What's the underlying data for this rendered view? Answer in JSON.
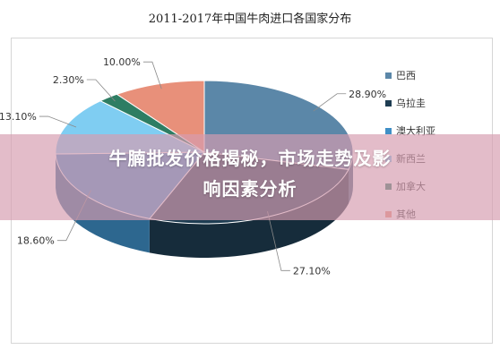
{
  "chart_data": {
    "type": "pie",
    "title": "2011-2017年中国牛肉进口各国家分布",
    "categories": [
      "巴西",
      "乌拉圭",
      "澳大利亚",
      "新西兰",
      "加拿大",
      "其他"
    ],
    "values": [
      28.9,
      27.1,
      18.6,
      13.1,
      2.3,
      10.0
    ],
    "value_labels": [
      "28.90%",
      "27.10%",
      "18.60%",
      "13.10%",
      "2.30%",
      "10.00%"
    ],
    "colors": [
      "#5b87a8",
      "#1e3d52",
      "#3f8fc6",
      "#7fcdf2",
      "#2e7d63",
      "#e8907a"
    ],
    "legend_position": "right",
    "three_d": true
  },
  "overlay": {
    "line1": "牛腩批发价格揭秘，市场走势及影",
    "line2": "响因素分析"
  }
}
